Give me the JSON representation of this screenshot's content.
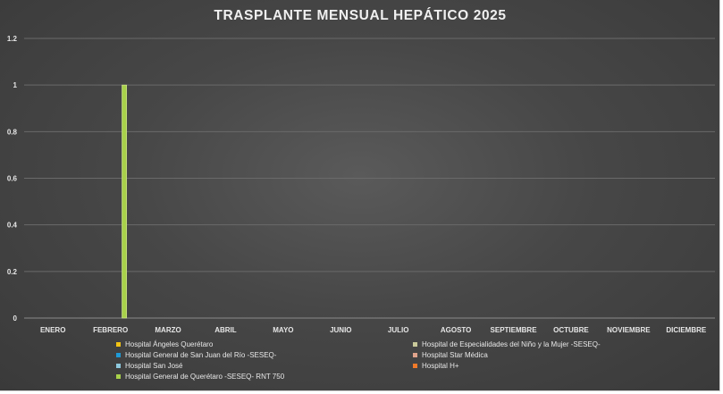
{
  "chart_data": {
    "type": "bar",
    "title": "TRASPLANTE MENSUAL HEPÁTICO 2025",
    "categories": [
      "ENERO",
      "FEBRERO",
      "MARZO",
      "ABRIL",
      "MAYO",
      "JUNIO",
      "JULIO",
      "AGOSTO",
      "SEPTIEMBRE",
      "OCTUBRE",
      "NOVIEMBRE",
      "DICIEMBRE"
    ],
    "ylim": [
      0,
      1.2
    ],
    "yticks": [
      "0",
      "0.2",
      "0.4",
      "0.6",
      "0.8",
      "1",
      "1.2"
    ],
    "grid": true,
    "legend_position": "bottom",
    "series": [
      {
        "name": "Hospital Ángeles Querétaro",
        "color": "#f2c314",
        "values": [
          0,
          0,
          0,
          0,
          0,
          0,
          0,
          0,
          0,
          0,
          0,
          0
        ]
      },
      {
        "name": "Hospital de Especialidades del Niño y la Mujer -SESEQ-",
        "color": "#c9c99a",
        "values": [
          0,
          0,
          0,
          0,
          0,
          0,
          0,
          0,
          0,
          0,
          0,
          0
        ]
      },
      {
        "name": "Hospital General de San Juan del Río -SESEQ-",
        "color": "#1f9ad6",
        "values": [
          0,
          0,
          0,
          0,
          0,
          0,
          0,
          0,
          0,
          0,
          0,
          0
        ]
      },
      {
        "name": "Hospital Star Médica",
        "color": "#e0a48c",
        "values": [
          0,
          0,
          0,
          0,
          0,
          0,
          0,
          0,
          0,
          0,
          0,
          0
        ]
      },
      {
        "name": "Hospital San José",
        "color": "#8ec9de",
        "values": [
          0,
          0,
          0,
          0,
          0,
          0,
          0,
          0,
          0,
          0,
          0,
          0
        ]
      },
      {
        "name": "Hospital H+",
        "color": "#f07a2a",
        "values": [
          0,
          0,
          0,
          0,
          0,
          0,
          0,
          0,
          0,
          0,
          0,
          0
        ]
      },
      {
        "name": "Hospital General de Querétaro -SESEQ- RNT 750",
        "color": "#a8d14a",
        "values": [
          0,
          1,
          0,
          0,
          0,
          0,
          0,
          0,
          0,
          0,
          0,
          0
        ]
      }
    ]
  }
}
